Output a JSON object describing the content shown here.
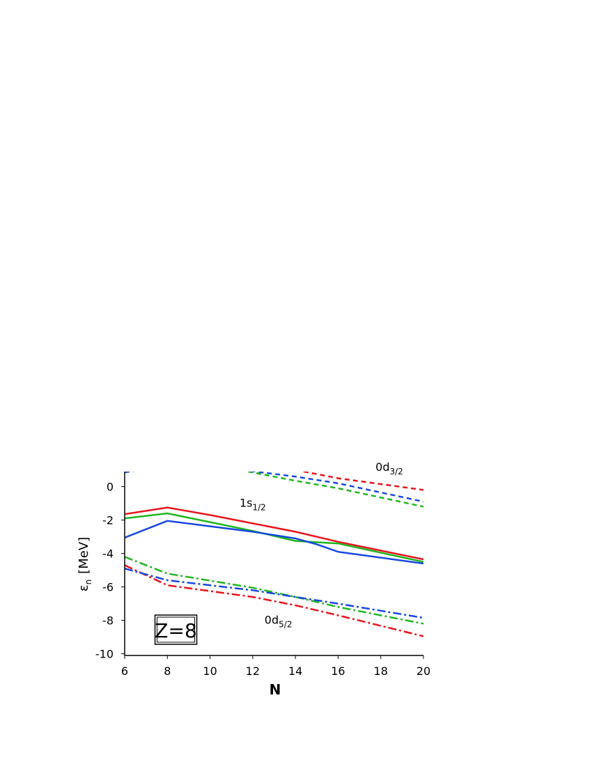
{
  "chart_data": {
    "type": "line",
    "xlabel": "N",
    "ylabel": {
      "symbol": "ε",
      "sub": "n",
      "unit": "[MeV]"
    },
    "xlim": [
      6,
      20
    ],
    "xticks": [
      6,
      8,
      10,
      12,
      14,
      16,
      18,
      20
    ],
    "ylim": [
      -10.1,
      0.9
    ],
    "yticks": [
      0,
      -2,
      -4,
      -6,
      -8,
      -10
    ],
    "series": [
      {
        "color": "#e8141e",
        "style": "solid",
        "x": [
          6,
          8,
          10,
          12,
          14,
          16,
          20
        ],
        "values": [
          -1.65,
          -1.25,
          -1.7,
          -2.2,
          -2.7,
          -3.3,
          -4.35
        ]
      },
      {
        "color": "#1fb51f",
        "style": "solid",
        "x": [
          6,
          8,
          12,
          14,
          16,
          20
        ],
        "values": [
          -1.9,
          -1.6,
          -2.65,
          -3.25,
          -3.4,
          -4.5
        ]
      },
      {
        "color": "#1747e0",
        "style": "solid",
        "x": [
          6,
          8,
          12,
          14,
          15,
          16,
          20
        ],
        "values": [
          -3.05,
          -2.05,
          -2.7,
          -3.1,
          -3.45,
          -3.9,
          -4.6
        ]
      },
      {
        "color": "#e8141e",
        "style": "dashdot",
        "x": [
          6,
          8,
          12,
          14,
          16,
          20
        ],
        "values": [
          -4.7,
          -5.9,
          -6.6,
          -7.1,
          -7.7,
          -8.95
        ]
      },
      {
        "color": "#1fb51f",
        "style": "dashdot",
        "x": [
          6,
          8,
          12,
          14,
          16,
          20
        ],
        "values": [
          -4.2,
          -5.2,
          -6.05,
          -6.6,
          -7.2,
          -8.2
        ]
      },
      {
        "color": "#1747e0",
        "style": "dashdot",
        "x": [
          6,
          8,
          12,
          14,
          16,
          20
        ],
        "values": [
          -4.9,
          -5.6,
          -6.2,
          -6.6,
          -7.0,
          -7.85
        ]
      },
      {
        "color": "#e8141e",
        "style": "dashed",
        "x": [
          14,
          16,
          20
        ],
        "values": [
          1.0,
          0.5,
          -0.2
        ]
      },
      {
        "color": "#1fb51f",
        "style": "dashed",
        "x": [
          11.4,
          14,
          16,
          20
        ],
        "values": [
          1.0,
          0.35,
          -0.1,
          -1.2
        ]
      },
      {
        "color": "#1747e0",
        "style": "dashed",
        "x": [
          6,
          6.7
        ],
        "values": [
          0.85,
          1.0
        ]
      },
      {
        "color": "#1747e0",
        "style": "dashed",
        "x": [
          11.5,
          14,
          16,
          20
        ],
        "values": [
          1.0,
          0.6,
          0.2,
          -0.9
        ]
      }
    ],
    "annotations": [
      {
        "text": "1s",
        "sub": "1/2",
        "x": 12,
        "y": -1.2
      },
      {
        "text": "0d",
        "sub": "5/2",
        "x": 13.2,
        "y": -8.2
      },
      {
        "text": "0d",
        "sub": "3/2",
        "x": 18.4,
        "y": 0.95
      }
    ],
    "box_label": {
      "text": "Z=8",
      "x": 8.4,
      "y": -8.6
    }
  }
}
